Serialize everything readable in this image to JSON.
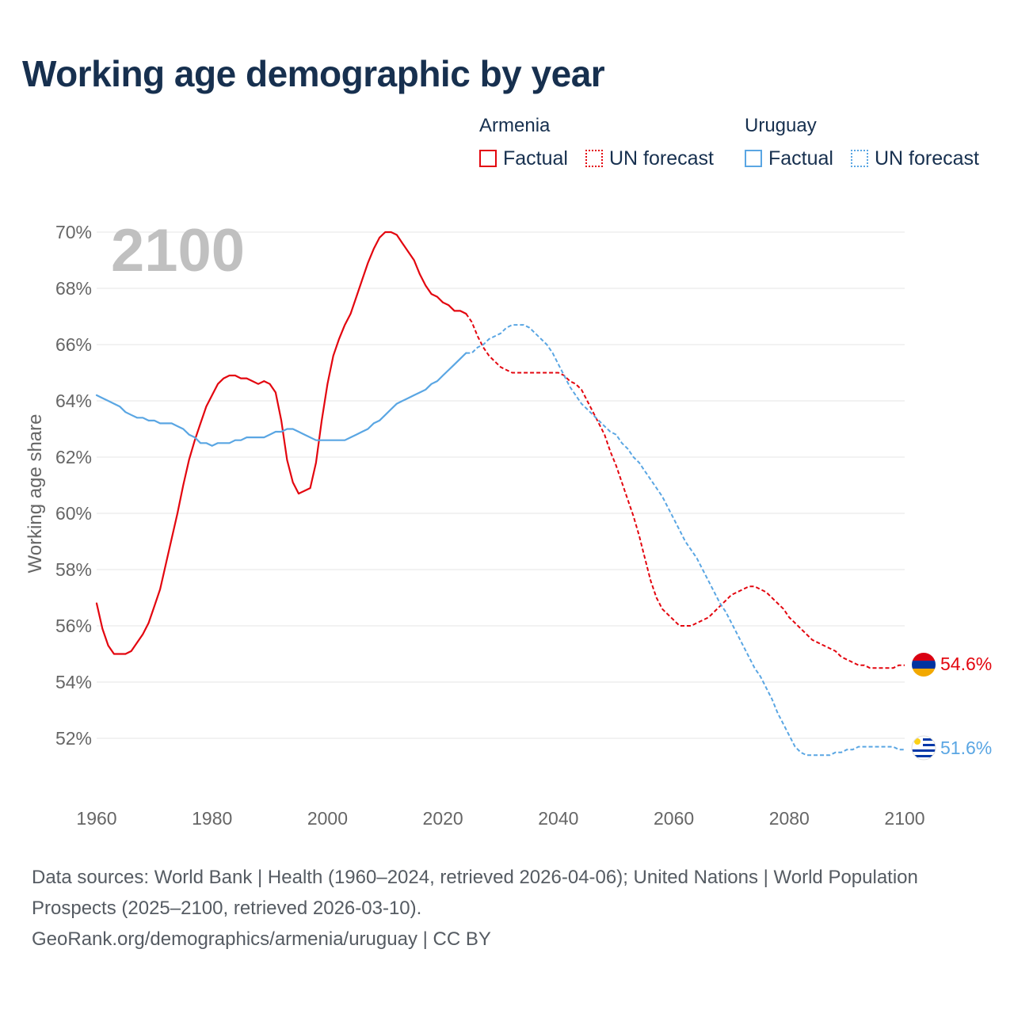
{
  "title": "Working age demographic by year",
  "year_watermark": "2100",
  "legend": {
    "groups": [
      {
        "name": "Armenia",
        "color": "#e3060f",
        "factual_label": "Factual",
        "forecast_label": "UN forecast"
      },
      {
        "name": "Uruguay",
        "color": "#5aa6e3",
        "factual_label": "Factual",
        "forecast_label": "UN forecast"
      }
    ]
  },
  "end_labels": {
    "armenia": {
      "text": "54.6%",
      "color": "#e3060f",
      "flag": "armenia-flag-icon"
    },
    "uruguay": {
      "text": "51.6%",
      "color": "#5aa6e3",
      "flag": "uruguay-flag-icon"
    }
  },
  "footer": {
    "line1": "Data sources: World Bank | Health (1960–2024, retrieved 2026-04-06); United Nations | World Population Prospects (2025–2100, retrieved 2026-03-10).",
    "line2": "GeoRank.org/demographics/armenia/uruguay | CC BY"
  },
  "chart_data": {
    "type": "line",
    "title": "Working age demographic by year",
    "xlabel": "",
    "ylabel": "Working age share",
    "xlim": [
      1960,
      2100
    ],
    "ylim": [
      50.5,
      70.3
    ],
    "x_ticks": [
      1960,
      1980,
      2000,
      2020,
      2040,
      2060,
      2080,
      2100
    ],
    "y_ticks": [
      52,
      54,
      56,
      58,
      60,
      62,
      64,
      66,
      68,
      70
    ],
    "y_tick_suffix": "%",
    "grid": true,
    "factual_end_year": 2024,
    "series": [
      {
        "name": "Armenia",
        "color": "#e3060f",
        "points": [
          [
            1960,
            56.8
          ],
          [
            1961,
            55.9
          ],
          [
            1962,
            55.3
          ],
          [
            1963,
            55.0
          ],
          [
            1964,
            55.0
          ],
          [
            1965,
            55.0
          ],
          [
            1966,
            55.1
          ],
          [
            1967,
            55.4
          ],
          [
            1968,
            55.7
          ],
          [
            1969,
            56.1
          ],
          [
            1970,
            56.7
          ],
          [
            1971,
            57.3
          ],
          [
            1972,
            58.2
          ],
          [
            1973,
            59.1
          ],
          [
            1974,
            60.0
          ],
          [
            1975,
            61.0
          ],
          [
            1976,
            61.9
          ],
          [
            1977,
            62.6
          ],
          [
            1978,
            63.2
          ],
          [
            1979,
            63.8
          ],
          [
            1980,
            64.2
          ],
          [
            1981,
            64.6
          ],
          [
            1982,
            64.8
          ],
          [
            1983,
            64.9
          ],
          [
            1984,
            64.9
          ],
          [
            1985,
            64.8
          ],
          [
            1986,
            64.8
          ],
          [
            1987,
            64.7
          ],
          [
            1988,
            64.6
          ],
          [
            1989,
            64.7
          ],
          [
            1990,
            64.6
          ],
          [
            1991,
            64.3
          ],
          [
            1992,
            63.3
          ],
          [
            1993,
            61.9
          ],
          [
            1994,
            61.1
          ],
          [
            1995,
            60.7
          ],
          [
            1996,
            60.8
          ],
          [
            1997,
            60.9
          ],
          [
            1998,
            61.8
          ],
          [
            1999,
            63.3
          ],
          [
            2000,
            64.6
          ],
          [
            2001,
            65.6
          ],
          [
            2002,
            66.2
          ],
          [
            2003,
            66.7
          ],
          [
            2004,
            67.1
          ],
          [
            2005,
            67.7
          ],
          [
            2006,
            68.3
          ],
          [
            2007,
            68.9
          ],
          [
            2008,
            69.4
          ],
          [
            2009,
            69.8
          ],
          [
            2010,
            70.0
          ],
          [
            2011,
            70.0
          ],
          [
            2012,
            69.9
          ],
          [
            2013,
            69.6
          ],
          [
            2014,
            69.3
          ],
          [
            2015,
            69.0
          ],
          [
            2016,
            68.5
          ],
          [
            2017,
            68.1
          ],
          [
            2018,
            67.8
          ],
          [
            2019,
            67.7
          ],
          [
            2020,
            67.5
          ],
          [
            2021,
            67.4
          ],
          [
            2022,
            67.2
          ],
          [
            2023,
            67.2
          ],
          [
            2024,
            67.1
          ],
          [
            2025,
            66.8
          ],
          [
            2026,
            66.3
          ],
          [
            2027,
            65.9
          ],
          [
            2028,
            65.6
          ],
          [
            2029,
            65.4
          ],
          [
            2030,
            65.2
          ],
          [
            2031,
            65.1
          ],
          [
            2032,
            65.0
          ],
          [
            2033,
            65.0
          ],
          [
            2034,
            65.0
          ],
          [
            2035,
            65.0
          ],
          [
            2036,
            65.0
          ],
          [
            2037,
            65.0
          ],
          [
            2038,
            65.0
          ],
          [
            2039,
            65.0
          ],
          [
            2040,
            65.0
          ],
          [
            2041,
            64.9
          ],
          [
            2042,
            64.7
          ],
          [
            2043,
            64.6
          ],
          [
            2044,
            64.4
          ],
          [
            2045,
            64.0
          ],
          [
            2046,
            63.6
          ],
          [
            2047,
            63.2
          ],
          [
            2048,
            62.8
          ],
          [
            2049,
            62.2
          ],
          [
            2050,
            61.7
          ],
          [
            2051,
            61.1
          ],
          [
            2052,
            60.5
          ],
          [
            2053,
            59.9
          ],
          [
            2054,
            59.2
          ],
          [
            2055,
            58.4
          ],
          [
            2056,
            57.6
          ],
          [
            2057,
            57.0
          ],
          [
            2058,
            56.6
          ],
          [
            2059,
            56.4
          ],
          [
            2060,
            56.2
          ],
          [
            2061,
            56.0
          ],
          [
            2062,
            56.0
          ],
          [
            2063,
            56.0
          ],
          [
            2064,
            56.1
          ],
          [
            2065,
            56.2
          ],
          [
            2066,
            56.3
          ],
          [
            2067,
            56.5
          ],
          [
            2068,
            56.7
          ],
          [
            2069,
            56.9
          ],
          [
            2070,
            57.1
          ],
          [
            2071,
            57.2
          ],
          [
            2072,
            57.3
          ],
          [
            2073,
            57.4
          ],
          [
            2074,
            57.4
          ],
          [
            2075,
            57.3
          ],
          [
            2076,
            57.2
          ],
          [
            2077,
            57.0
          ],
          [
            2078,
            56.8
          ],
          [
            2079,
            56.6
          ],
          [
            2080,
            56.3
          ],
          [
            2081,
            56.1
          ],
          [
            2082,
            55.9
          ],
          [
            2083,
            55.7
          ],
          [
            2084,
            55.5
          ],
          [
            2085,
            55.4
          ],
          [
            2086,
            55.3
          ],
          [
            2087,
            55.2
          ],
          [
            2088,
            55.1
          ],
          [
            2089,
            54.9
          ],
          [
            2090,
            54.8
          ],
          [
            2091,
            54.7
          ],
          [
            2092,
            54.6
          ],
          [
            2093,
            54.6
          ],
          [
            2094,
            54.5
          ],
          [
            2095,
            54.5
          ],
          [
            2096,
            54.5
          ],
          [
            2097,
            54.5
          ],
          [
            2098,
            54.5
          ],
          [
            2099,
            54.6
          ],
          [
            2100,
            54.6
          ]
        ]
      },
      {
        "name": "Uruguay",
        "color": "#5aa6e3",
        "points": [
          [
            1960,
            64.2
          ],
          [
            1961,
            64.1
          ],
          [
            1962,
            64.0
          ],
          [
            1963,
            63.9
          ],
          [
            1964,
            63.8
          ],
          [
            1965,
            63.6
          ],
          [
            1966,
            63.5
          ],
          [
            1967,
            63.4
          ],
          [
            1968,
            63.4
          ],
          [
            1969,
            63.3
          ],
          [
            1970,
            63.3
          ],
          [
            1971,
            63.2
          ],
          [
            1972,
            63.2
          ],
          [
            1973,
            63.2
          ],
          [
            1974,
            63.1
          ],
          [
            1975,
            63.0
          ],
          [
            1976,
            62.8
          ],
          [
            1977,
            62.7
          ],
          [
            1978,
            62.5
          ],
          [
            1979,
            62.5
          ],
          [
            1980,
            62.4
          ],
          [
            1981,
            62.5
          ],
          [
            1982,
            62.5
          ],
          [
            1983,
            62.5
          ],
          [
            1984,
            62.6
          ],
          [
            1985,
            62.6
          ],
          [
            1986,
            62.7
          ],
          [
            1987,
            62.7
          ],
          [
            1988,
            62.7
          ],
          [
            1989,
            62.7
          ],
          [
            1990,
            62.8
          ],
          [
            1991,
            62.9
          ],
          [
            1992,
            62.9
          ],
          [
            1993,
            63.0
          ],
          [
            1994,
            63.0
          ],
          [
            1995,
            62.9
          ],
          [
            1996,
            62.8
          ],
          [
            1997,
            62.7
          ],
          [
            1998,
            62.6
          ],
          [
            1999,
            62.6
          ],
          [
            2000,
            62.6
          ],
          [
            2001,
            62.6
          ],
          [
            2002,
            62.6
          ],
          [
            2003,
            62.6
          ],
          [
            2004,
            62.7
          ],
          [
            2005,
            62.8
          ],
          [
            2006,
            62.9
          ],
          [
            2007,
            63.0
          ],
          [
            2008,
            63.2
          ],
          [
            2009,
            63.3
          ],
          [
            2010,
            63.5
          ],
          [
            2011,
            63.7
          ],
          [
            2012,
            63.9
          ],
          [
            2013,
            64.0
          ],
          [
            2014,
            64.1
          ],
          [
            2015,
            64.2
          ],
          [
            2016,
            64.3
          ],
          [
            2017,
            64.4
          ],
          [
            2018,
            64.6
          ],
          [
            2019,
            64.7
          ],
          [
            2020,
            64.9
          ],
          [
            2021,
            65.1
          ],
          [
            2022,
            65.3
          ],
          [
            2023,
            65.5
          ],
          [
            2024,
            65.7
          ],
          [
            2025,
            65.7
          ],
          [
            2026,
            65.9
          ],
          [
            2027,
            66.0
          ],
          [
            2028,
            66.2
          ],
          [
            2029,
            66.3
          ],
          [
            2030,
            66.4
          ],
          [
            2031,
            66.6
          ],
          [
            2032,
            66.7
          ],
          [
            2033,
            66.7
          ],
          [
            2034,
            66.7
          ],
          [
            2035,
            66.6
          ],
          [
            2036,
            66.4
          ],
          [
            2037,
            66.2
          ],
          [
            2038,
            66.0
          ],
          [
            2039,
            65.7
          ],
          [
            2040,
            65.3
          ],
          [
            2041,
            64.9
          ],
          [
            2042,
            64.5
          ],
          [
            2043,
            64.2
          ],
          [
            2044,
            63.9
          ],
          [
            2045,
            63.7
          ],
          [
            2046,
            63.5
          ],
          [
            2047,
            63.3
          ],
          [
            2048,
            63.1
          ],
          [
            2049,
            62.9
          ],
          [
            2050,
            62.8
          ],
          [
            2051,
            62.5
          ],
          [
            2052,
            62.3
          ],
          [
            2053,
            62.0
          ],
          [
            2054,
            61.8
          ],
          [
            2055,
            61.5
          ],
          [
            2056,
            61.2
          ],
          [
            2057,
            60.9
          ],
          [
            2058,
            60.6
          ],
          [
            2059,
            60.2
          ],
          [
            2060,
            59.8
          ],
          [
            2061,
            59.4
          ],
          [
            2062,
            59.0
          ],
          [
            2063,
            58.7
          ],
          [
            2064,
            58.4
          ],
          [
            2065,
            58.0
          ],
          [
            2066,
            57.6
          ],
          [
            2067,
            57.2
          ],
          [
            2068,
            56.8
          ],
          [
            2069,
            56.5
          ],
          [
            2070,
            56.1
          ],
          [
            2071,
            55.7
          ],
          [
            2072,
            55.3
          ],
          [
            2073,
            54.9
          ],
          [
            2074,
            54.5
          ],
          [
            2075,
            54.2
          ],
          [
            2076,
            53.8
          ],
          [
            2077,
            53.4
          ],
          [
            2078,
            52.9
          ],
          [
            2079,
            52.5
          ],
          [
            2080,
            52.1
          ],
          [
            2081,
            51.7
          ],
          [
            2082,
            51.5
          ],
          [
            2083,
            51.4
          ],
          [
            2084,
            51.4
          ],
          [
            2085,
            51.4
          ],
          [
            2086,
            51.4
          ],
          [
            2087,
            51.4
          ],
          [
            2088,
            51.5
          ],
          [
            2089,
            51.5
          ],
          [
            2090,
            51.6
          ],
          [
            2091,
            51.6
          ],
          [
            2092,
            51.7
          ],
          [
            2093,
            51.7
          ],
          [
            2094,
            51.7
          ],
          [
            2095,
            51.7
          ],
          [
            2096,
            51.7
          ],
          [
            2097,
            51.7
          ],
          [
            2098,
            51.7
          ],
          [
            2099,
            51.6
          ],
          [
            2100,
            51.6
          ]
        ]
      }
    ]
  }
}
